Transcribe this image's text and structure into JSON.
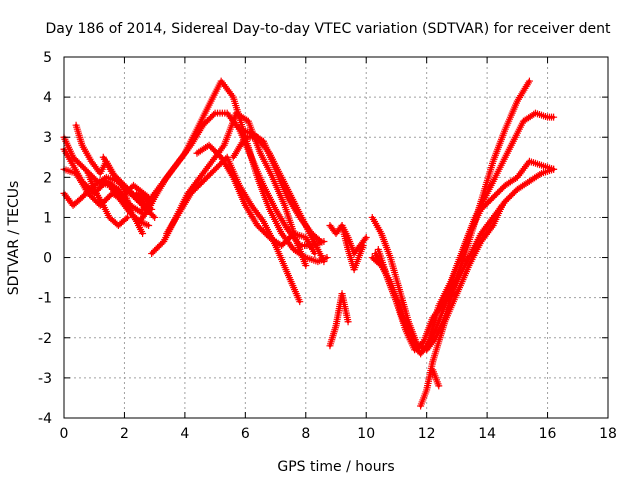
{
  "chart_data": {
    "type": "scatter",
    "title": "Day 186 of 2014, Sidereal Day-to-day VTEC variation (SDTVAR) for receiver dent",
    "xlabel": "GPS time / hours",
    "ylabel": "SDTVAR / TECUs",
    "xlim": [
      0,
      18
    ],
    "ylim": [
      -4,
      5
    ],
    "xticks": [
      0,
      2,
      4,
      6,
      8,
      10,
      12,
      14,
      16,
      18
    ],
    "yticks": [
      -4,
      -3,
      -2,
      -1,
      0,
      1,
      2,
      3,
      4,
      5
    ],
    "grid": true,
    "legend": "none",
    "marker": "+",
    "color": "#ff0000",
    "series": [
      {
        "name": "trace-1",
        "x": [
          0.0,
          0.4,
          0.8,
          1.2,
          1.6,
          2.0,
          2.4,
          2.6
        ],
        "y": [
          2.2,
          2.1,
          1.6,
          1.3,
          1.6,
          1.4,
          0.9,
          0.6
        ]
      },
      {
        "name": "trace-2",
        "x": [
          0.0,
          0.3,
          0.6,
          1.0,
          1.4,
          1.8,
          2.2,
          2.6
        ],
        "y": [
          2.7,
          2.3,
          1.9,
          1.6,
          1.9,
          1.7,
          1.3,
          1.1
        ]
      },
      {
        "name": "trace-3",
        "x": [
          0.0,
          0.3,
          0.7,
          1.1,
          1.5,
          1.9,
          2.3,
          2.8
        ],
        "y": [
          3.0,
          2.5,
          2.2,
          1.9,
          1.8,
          1.5,
          1.8,
          1.5
        ]
      },
      {
        "name": "trace-4",
        "x": [
          0.0,
          0.3,
          0.6,
          1.0,
          1.4,
          1.8,
          2.2,
          2.6,
          3.0
        ],
        "y": [
          1.6,
          1.3,
          1.5,
          1.8,
          2.0,
          1.9,
          1.6,
          1.3,
          1.0
        ]
      },
      {
        "name": "trace-5",
        "x": [
          0.4,
          0.6,
          0.9,
          1.2,
          1.4,
          1.7,
          2.0,
          2.2,
          2.5,
          2.8
        ],
        "y": [
          3.3,
          2.8,
          2.4,
          2.1,
          2.4,
          2.0,
          1.7,
          1.1,
          0.9,
          0.8
        ]
      },
      {
        "name": "trace-6",
        "x": [
          0.8,
          1.0,
          1.3,
          1.5,
          1.8,
          2.1
        ],
        "y": [
          2.1,
          1.7,
          1.3,
          1.0,
          0.8,
          1.0
        ]
      },
      {
        "name": "trace-7",
        "x": [
          1.3,
          1.6,
          2.0,
          2.4,
          2.9
        ],
        "y": [
          2.5,
          2.1,
          1.8,
          1.5,
          1.2
        ]
      },
      {
        "name": "trace-8",
        "x": [
          1.6,
          1.9,
          2.2,
          2.5,
          2.8,
          3.0
        ],
        "y": [
          1.7,
          1.4,
          1.1,
          0.9,
          1.2,
          1.5
        ]
      },
      {
        "name": "trace-main-a",
        "x": [
          2.4,
          2.8,
          3.2,
          3.6,
          4.0,
          4.4,
          4.8,
          5.2,
          5.6,
          6.0,
          6.4,
          6.8,
          7.2,
          7.6,
          8.0,
          8.4,
          8.7
        ],
        "y": [
          1.6,
          1.4,
          1.8,
          2.2,
          2.6,
          3.2,
          3.8,
          4.4,
          4.0,
          3.0,
          2.0,
          1.2,
          0.6,
          0.2,
          0.0,
          -0.1,
          0.0
        ]
      },
      {
        "name": "trace-main-b",
        "x": [
          2.6,
          3.0,
          3.4,
          3.8,
          4.2,
          4.6,
          5.0,
          5.4,
          5.8,
          6.2,
          6.6,
          7.0,
          7.4,
          7.8,
          8.2,
          8.6
        ],
        "y": [
          1.2,
          1.5,
          2.0,
          2.4,
          2.8,
          3.3,
          3.6,
          3.6,
          3.2,
          2.5,
          1.8,
          1.2,
          0.7,
          0.3,
          0.3,
          0.4
        ]
      },
      {
        "name": "trace-main-c",
        "x": [
          2.9,
          3.3,
          3.7,
          4.1,
          4.5,
          4.9,
          5.3,
          5.7,
          6.1,
          6.5,
          6.9,
          7.3,
          7.7,
          8.0
        ],
        "y": [
          0.1,
          0.4,
          1.0,
          1.6,
          2.0,
          2.4,
          2.8,
          3.6,
          3.4,
          2.6,
          2.0,
          1.3,
          0.4,
          -0.2
        ]
      },
      {
        "name": "trace-main-d",
        "x": [
          3.4,
          3.8,
          4.2,
          4.6,
          5.0,
          5.4,
          5.8,
          6.2,
          6.6,
          7.0,
          7.4,
          7.8
        ],
        "y": [
          0.6,
          1.1,
          1.6,
          1.9,
          2.2,
          2.5,
          1.8,
          1.3,
          0.9,
          0.3,
          -0.4,
          -1.1
        ]
      },
      {
        "name": "trace-main-e",
        "x": [
          4.4,
          4.8,
          5.2,
          5.6,
          6.0,
          6.4,
          6.8,
          7.2,
          7.6,
          8.0,
          8.3
        ],
        "y": [
          2.6,
          2.8,
          2.5,
          2.0,
          1.3,
          0.8,
          0.5,
          0.3,
          0.6,
          0.5,
          0.1
        ]
      },
      {
        "name": "trace-main-f",
        "x": [
          5.6,
          6.0,
          6.4,
          6.8,
          7.2,
          7.6,
          8.0,
          8.4,
          8.6
        ],
        "y": [
          2.5,
          3.0,
          3.0,
          2.6,
          2.0,
          1.4,
          0.8,
          0.2,
          -0.1
        ]
      },
      {
        "name": "trace-main-g",
        "x": [
          5.8,
          6.2,
          6.6,
          7.0,
          7.4,
          7.8,
          8.2,
          8.5
        ],
        "y": [
          3.2,
          3.1,
          2.9,
          2.2,
          1.5,
          1.0,
          0.6,
          0.4
        ]
      },
      {
        "name": "trace-mid-1",
        "x": [
          8.8,
          9.0,
          9.2,
          9.4,
          9.6,
          9.8,
          10.0
        ],
        "y": [
          0.8,
          0.6,
          0.8,
          0.5,
          0.1,
          0.3,
          0.5
        ]
      },
      {
        "name": "trace-mid-2",
        "x": [
          8.8,
          9.0,
          9.2,
          9.4
        ],
        "y": [
          -2.2,
          -1.7,
          -0.9,
          -1.6
        ]
      },
      {
        "name": "trace-mid-3",
        "x": [
          9.2,
          9.4,
          9.6,
          9.9
        ],
        "y": [
          0.8,
          0.2,
          -0.3,
          0.3
        ]
      },
      {
        "name": "trace-late-a",
        "x": [
          10.2,
          10.5,
          10.8,
          11.1,
          11.4,
          11.7,
          12.0,
          12.3,
          12.6,
          13.0,
          13.4,
          13.8,
          14.2,
          14.6,
          15.0,
          15.4
        ],
        "y": [
          1.0,
          0.6,
          0.0,
          -0.8,
          -1.6,
          -2.2,
          -2.3,
          -2.0,
          -1.5,
          -0.5,
          0.4,
          1.4,
          2.4,
          3.2,
          3.9,
          4.4
        ]
      },
      {
        "name": "trace-late-b",
        "x": [
          10.2,
          10.5,
          10.8,
          11.1,
          11.4,
          11.7,
          12.0,
          12.4,
          12.8,
          13.2,
          13.6,
          14.0,
          14.4,
          14.8,
          15.2,
          15.6,
          16.0,
          16.2
        ],
        "y": [
          0.0,
          -0.2,
          -0.6,
          -1.2,
          -1.8,
          -2.2,
          -2.3,
          -1.2,
          -0.6,
          0.2,
          1.0,
          1.6,
          2.2,
          2.8,
          3.4,
          3.6,
          3.5,
          3.5
        ]
      },
      {
        "name": "trace-late-c",
        "x": [
          10.3,
          10.6,
          10.9,
          11.2,
          11.5,
          11.8,
          12.0,
          12.3,
          12.6,
          13.0,
          13.4,
          13.8,
          14.2,
          14.6,
          15.0,
          15.4,
          15.8,
          16.2
        ],
        "y": [
          0.1,
          -0.3,
          -0.9,
          -1.5,
          -2.1,
          -2.4,
          -2.2,
          -1.8,
          -1.2,
          -0.2,
          0.6,
          1.2,
          1.5,
          1.8,
          2.0,
          2.4,
          2.3,
          2.2
        ]
      },
      {
        "name": "trace-late-d",
        "x": [
          10.4,
          10.7,
          11.0,
          11.3,
          11.6,
          11.9,
          12.2,
          12.6,
          13.0,
          13.4,
          13.8,
          14.2,
          14.6,
          15.0,
          15.4,
          15.8,
          16.2
        ],
        "y": [
          0.2,
          -0.5,
          -1.1,
          -1.8,
          -2.3,
          -2.1,
          -1.5,
          -1.1,
          -0.6,
          0.0,
          0.6,
          1.0,
          1.4,
          1.7,
          1.9,
          2.1,
          2.2
        ]
      },
      {
        "name": "trace-late-e",
        "x": [
          11.8,
          12.0,
          12.2,
          12.4,
          12.6,
          13.0,
          13.4,
          13.8,
          14.2,
          14.5
        ],
        "y": [
          -3.7,
          -3.3,
          -2.6,
          -2.1,
          -1.6,
          -0.9,
          -0.2,
          0.4,
          0.8,
          1.3
        ]
      },
      {
        "name": "trace-late-f",
        "x": [
          12.2,
          12.4
        ],
        "y": [
          -2.8,
          -3.2
        ]
      }
    ]
  }
}
